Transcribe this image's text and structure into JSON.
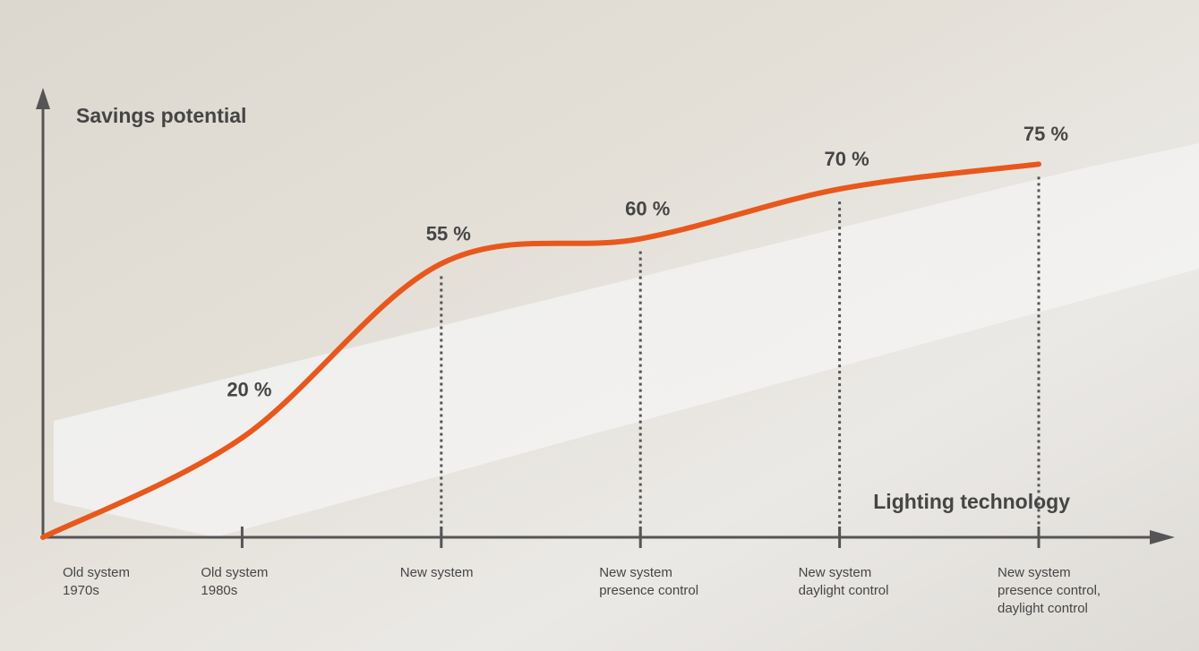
{
  "chart_data": {
    "type": "line",
    "x_label": "Lighting technology",
    "y_label": "Savings potential",
    "categories": [
      [
        "Old system",
        "1970s"
      ],
      [
        "Old system",
        "1980s"
      ],
      [
        "New system"
      ],
      [
        "New system",
        "presence control"
      ],
      [
        "New system",
        "daylight control"
      ],
      [
        "New system",
        "presence control,",
        "daylight control"
      ]
    ],
    "values": [
      0,
      20,
      55,
      60,
      70,
      75
    ],
    "value_labels": [
      null,
      "20 %",
      "55 %",
      "60 %",
      "70 %",
      "75 %"
    ],
    "color": "#e8581c",
    "ylim": [
      0,
      90
    ],
    "grid": false
  }
}
